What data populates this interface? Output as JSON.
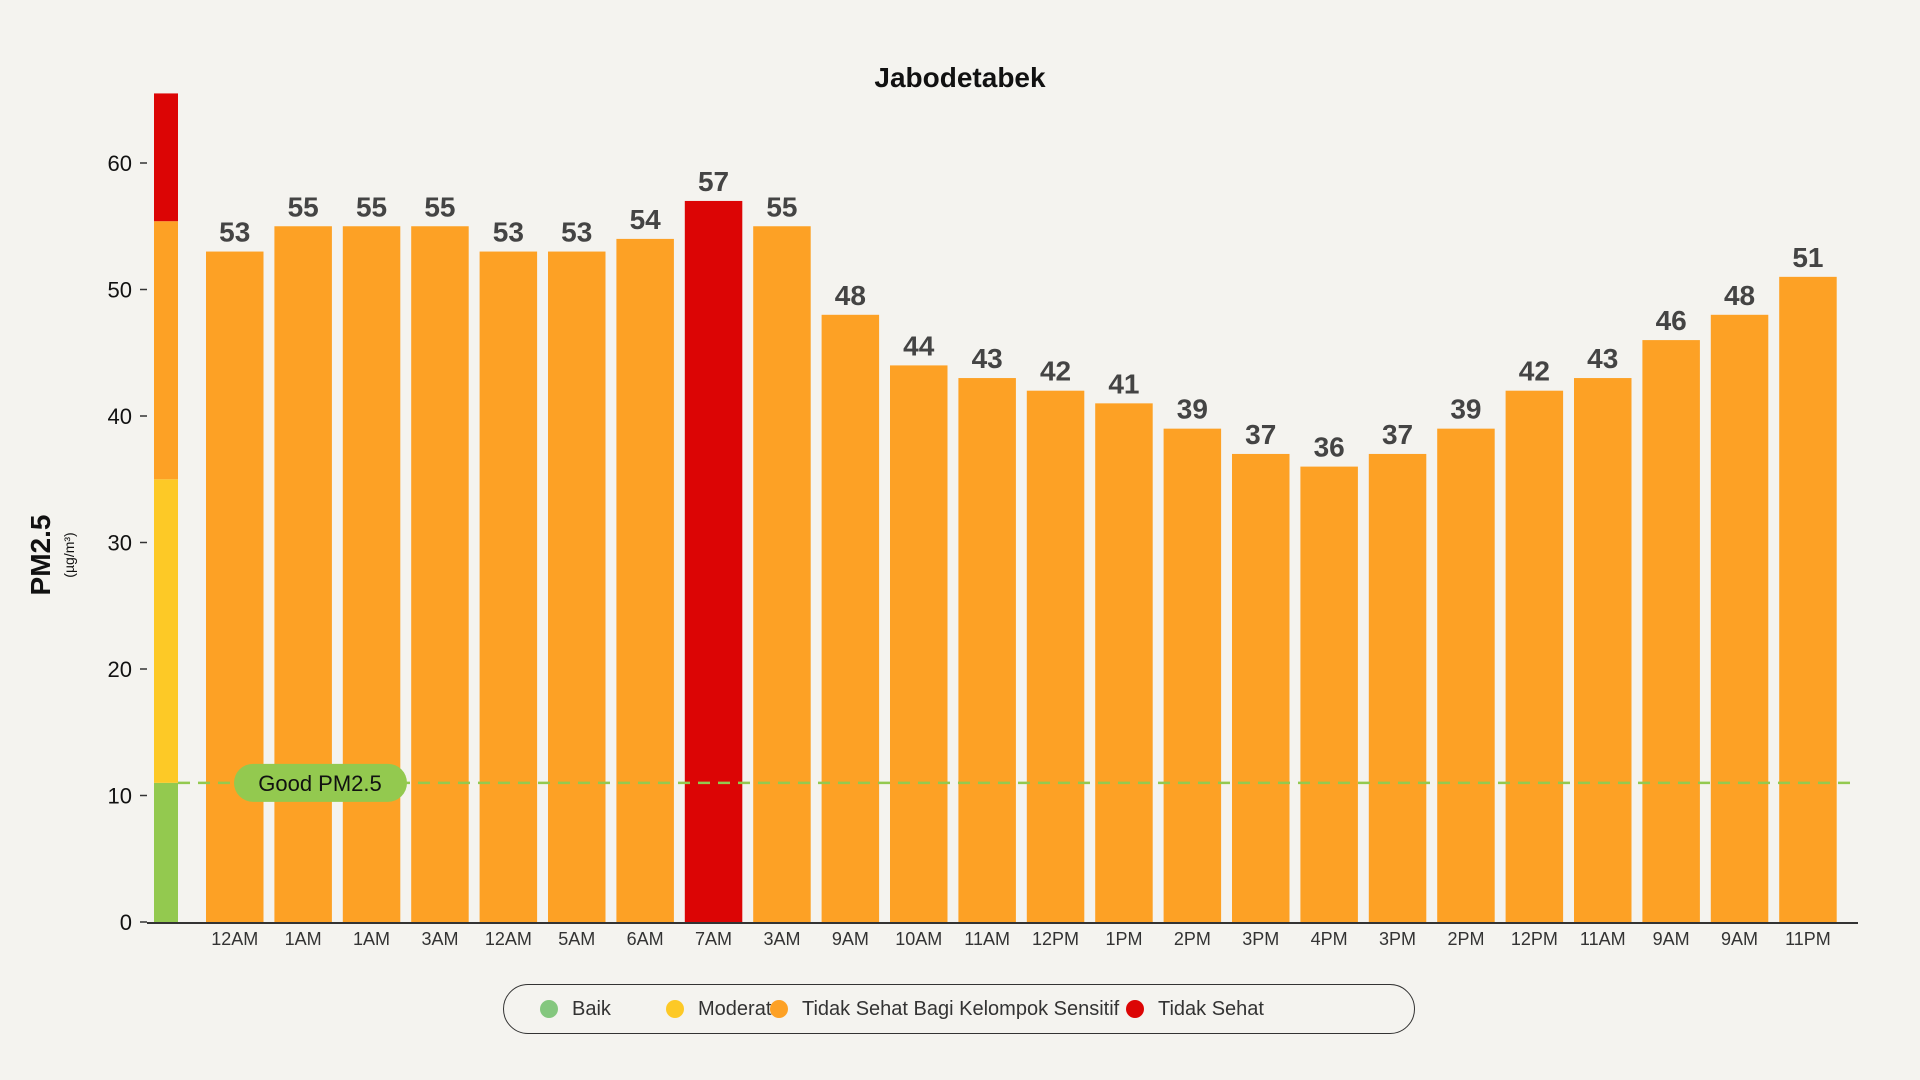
{
  "chart_data": {
    "type": "bar",
    "title": "Jabodetabek",
    "ylabel": "PM2.5",
    "yunit": "(µg/m³)",
    "xlabel": "",
    "ylim": [
      0,
      65.5
    ],
    "yticks": [
      0,
      10,
      20,
      30,
      40,
      50,
      60
    ],
    "categories": [
      "12AM",
      "1AM",
      "1AM",
      "3AM",
      "12AM",
      "5AM",
      "6AM",
      "7AM",
      "3AM",
      "9AM",
      "10AM",
      "11AM",
      "12PM",
      "1PM",
      "2PM",
      "3PM",
      "4PM",
      "3PM",
      "2PM",
      "12PM",
      "11AM",
      "9AM",
      "9AM",
      "11PM"
    ],
    "values": [
      53,
      55,
      55,
      55,
      53,
      53,
      54,
      57,
      55,
      48,
      44,
      43,
      42,
      41,
      39,
      37,
      36,
      37,
      39,
      42,
      43,
      46,
      48,
      51
    ],
    "reference_line": {
      "label": "Good PM2.5",
      "value": 11,
      "color": "#93c94f"
    },
    "scale_bands": [
      {
        "from": 0,
        "to": 11,
        "color": "#93c94f"
      },
      {
        "from": 11,
        "to": 35,
        "color": "#fdc926"
      },
      {
        "from": 35,
        "to": 55.4,
        "color": "#fda125"
      },
      {
        "from": 55.4,
        "to": 65.5,
        "color": "#dc0505"
      }
    ],
    "thresholds": [
      {
        "above": 55.4,
        "color": "#dc0505"
      },
      {
        "above": 35,
        "color": "#fda125"
      }
    ],
    "legend": [
      {
        "label": "Baik",
        "color": "#84c77e"
      },
      {
        "label": "Moderat",
        "color": "#fdc926"
      },
      {
        "label": "Tidak Sehat Bagi Kelompok Sensitif",
        "color": "#fda125"
      },
      {
        "label": "Tidak Sehat",
        "color": "#dc0505"
      }
    ],
    "legend_position": "bottom-center",
    "grid": false
  }
}
